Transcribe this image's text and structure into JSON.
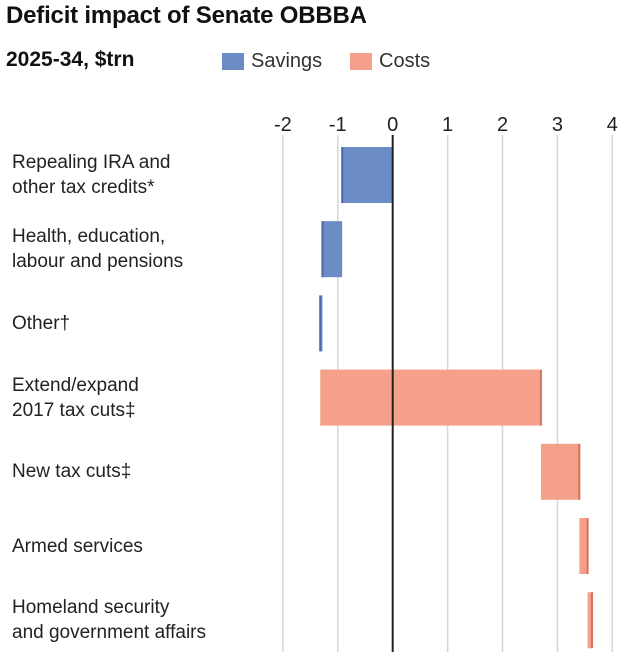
{
  "chart_data": {
    "type": "waterfall-bar",
    "title": "Deficit impact of Senate OBBBA",
    "subtitle": "2025-34, $trn",
    "legend": [
      {
        "name": "Savings",
        "color": "#6b8cc4"
      },
      {
        "name": "Costs",
        "color": "#f4a08a"
      }
    ],
    "legend_placement": "top",
    "xlim": [
      -2,
      4
    ],
    "x_ticks": [
      "-2",
      "-1",
      "0",
      "1",
      "2",
      "3",
      "4"
    ],
    "grid": true,
    "categories": [
      "Repealing IRA and\nother tax credits*",
      "Health, education,\nlabour and pensions",
      "Other†",
      "Extend/expand\n2017 tax cuts‡",
      "New tax cuts‡",
      "Armed services",
      "Homeland security\nand government affairs"
    ],
    "values": [
      -0.92,
      -0.36,
      -0.04,
      4.02,
      0.7,
      0.15,
      0.08
    ]
  }
}
